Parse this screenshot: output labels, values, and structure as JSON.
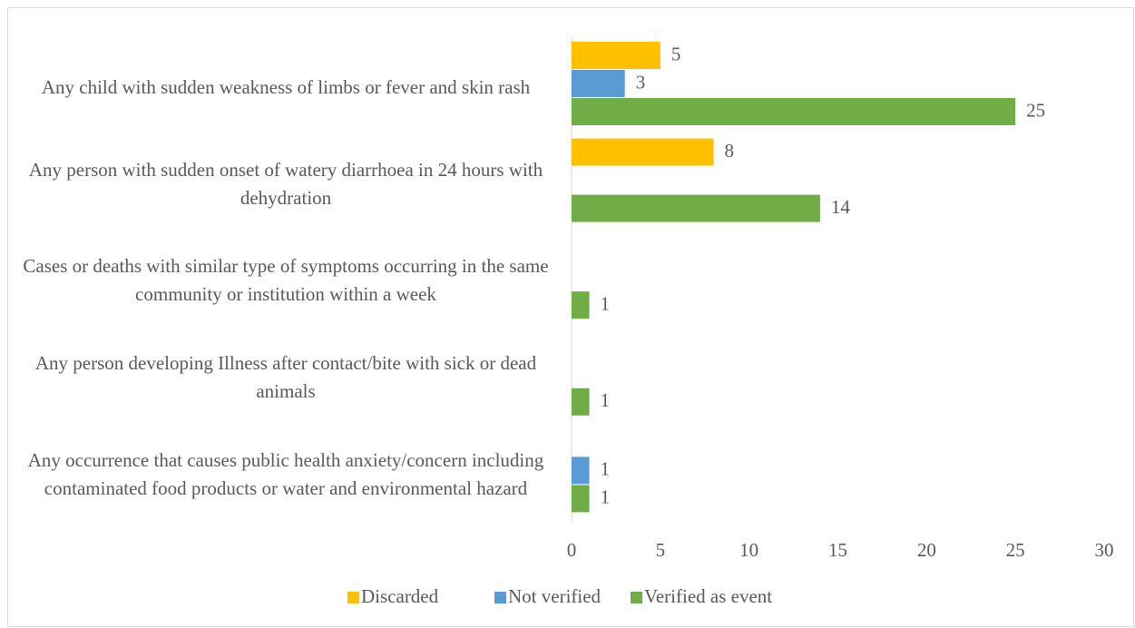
{
  "chart_data": {
    "type": "hbar",
    "categories": [
      "Any child with sudden weakness of limbs or fever and skin rash",
      "Any person with sudden onset of watery diarrhoea in 24 hours with dehydration",
      "Cases or deaths with similar type of symptoms occurring in the same community or institution within a week",
      "Any person developing Illness after contact/bite with sick or dead animals",
      "Any occurrence that causes public health anxiety/concern including contaminated food products or water and environmental hazard"
    ],
    "series": [
      {
        "name": "Discarded",
        "color": "#FFC000",
        "values": [
          5,
          8,
          null,
          null,
          null
        ]
      },
      {
        "name": "Not verified",
        "color": "#5B9BD5",
        "values": [
          3,
          null,
          null,
          null,
          1
        ]
      },
      {
        "name": "Verified as event",
        "color": "#70AD47",
        "values": [
          25,
          14,
          1,
          1,
          1
        ]
      }
    ],
    "xlim": [
      0,
      30
    ],
    "xticks": [
      0,
      5,
      10,
      15,
      20,
      25,
      30
    ],
    "grid": false,
    "legend": "bottom"
  }
}
